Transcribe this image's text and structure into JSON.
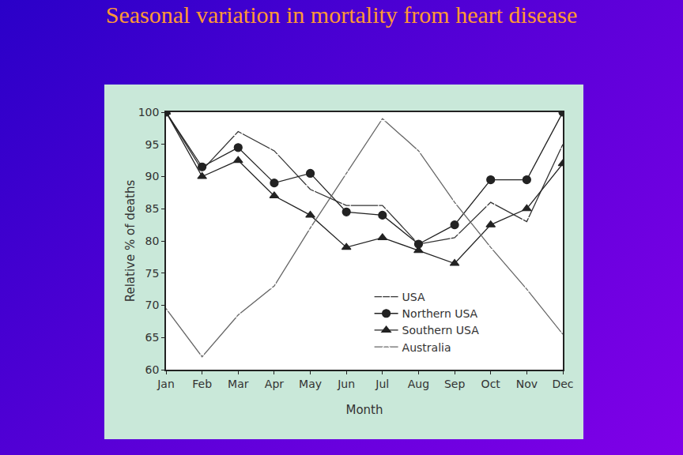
{
  "chart_data": {
    "type": "line",
    "title": "Seasonal variation in mortality from heart disease",
    "x_label": "Month",
    "y_label": "Relative % of deaths",
    "categories": [
      "Jan",
      "Feb",
      "Mar",
      "Apr",
      "May",
      "Jun",
      "Jul",
      "Aug",
      "Sep",
      "Oct",
      "Nov",
      "Dec"
    ],
    "series": [
      {
        "name": "USA",
        "color": "#333333",
        "marker": "square-open",
        "values": [
          100,
          91,
          97,
          94,
          88,
          85.5,
          85.5,
          79.5,
          80.5,
          86,
          83,
          95
        ]
      },
      {
        "name": "Northern USA",
        "color": "#222222",
        "marker": "circle",
        "values": [
          100,
          91.5,
          94.5,
          89,
          90.5,
          84.5,
          84,
          79.5,
          82.5,
          89.5,
          89.5,
          100
        ]
      },
      {
        "name": "Southern USA",
        "color": "#222222",
        "marker": "triangle-up",
        "values": [
          100,
          90,
          92.5,
          87,
          84,
          79,
          80.5,
          78.5,
          76.5,
          82.5,
          85,
          92
        ]
      },
      {
        "name": "Australia",
        "color": "#666666",
        "marker": "triangle-up-open",
        "values": [
          69.5,
          62,
          68.5,
          73,
          82,
          90.5,
          99,
          94,
          86,
          79,
          72.5,
          65.5
        ]
      }
    ],
    "ylim": [
      60,
      100
    ],
    "yticks": [
      60,
      65,
      70,
      75,
      80,
      85,
      90,
      95,
      100
    ],
    "legend": "lower right",
    "grid": false
  }
}
